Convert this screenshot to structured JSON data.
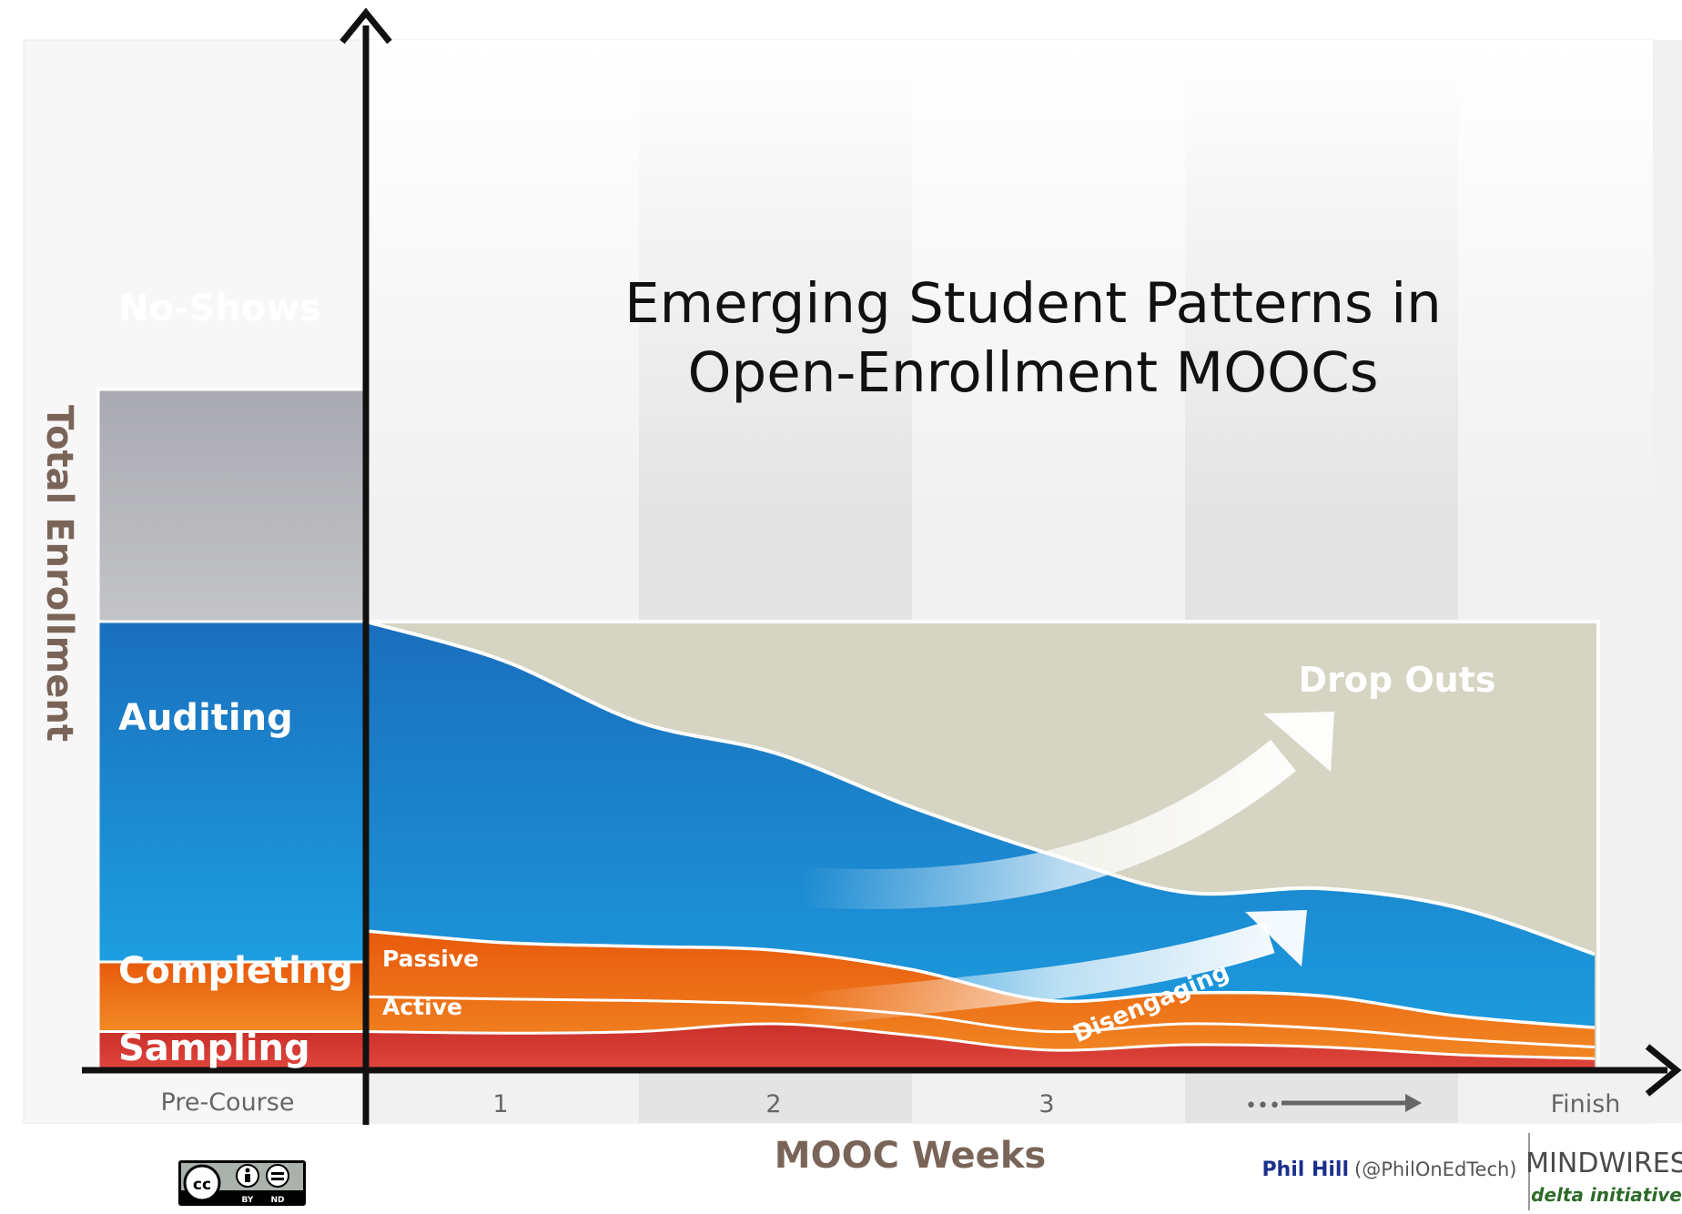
{
  "chart_data": {
    "type": "area",
    "title_lines": [
      "Emerging Student Patterns in",
      "Open-Enrollment MOOCs"
    ],
    "ylabel": "Total Enrollment",
    "xlabel": "MOOC Weeks",
    "x_ticks": [
      "Pre-Course",
      "1",
      "2",
      "3",
      "•••",
      "Finish"
    ],
    "pre_course_bar": [
      {
        "name": "No-Shows",
        "from": 58,
        "to": 88
      },
      {
        "name": "Auditing",
        "from": 14,
        "to": 58
      },
      {
        "name": "Completing",
        "from": 5,
        "to": 14
      },
      {
        "name": "Sampling",
        "from": 0,
        "to": 5
      }
    ],
    "flow_x": [
      0,
      0.5,
      1,
      1.5,
      2,
      2.5,
      3,
      3.5,
      4,
      4.5
    ],
    "flows": [
      {
        "name": "Auditing",
        "top": [
          58,
          53,
          45,
          41,
          34,
          28,
          23,
          23.5,
          21,
          15
        ]
      },
      {
        "name": "Completing",
        "sublabels": [
          "Passive",
          "Active"
        ],
        "top": [
          18,
          16.5,
          16,
          15.5,
          13,
          9,
          10,
          9.6,
          7,
          5.5
        ],
        "divider": [
          9.5,
          9.2,
          9,
          8.5,
          7.2,
          5,
          6,
          5.4,
          4,
          3
        ]
      },
      {
        "name": "Sampling",
        "top": [
          5,
          4.8,
          5,
          6,
          4.5,
          2.6,
          3.3,
          3,
          2,
          1.5
        ]
      }
    ],
    "dropout_band_top": 58,
    "annotations": [
      "Drop Outs",
      "Disengaging"
    ],
    "colors": {
      "noshows": "#b0b1b6",
      "auditing": "#1f78c4",
      "completing": "#ef6e12",
      "sampling": "#d2322a",
      "dropout": "#d6d4c2",
      "axis": "#111111"
    }
  },
  "credits": {
    "author": "Phil Hill",
    "handle": "(@PhilOnEdTech)",
    "brand": "MINDWIRES",
    "brand_sub": "delta initiative",
    "license_by": "BY",
    "license_nd": "ND"
  }
}
